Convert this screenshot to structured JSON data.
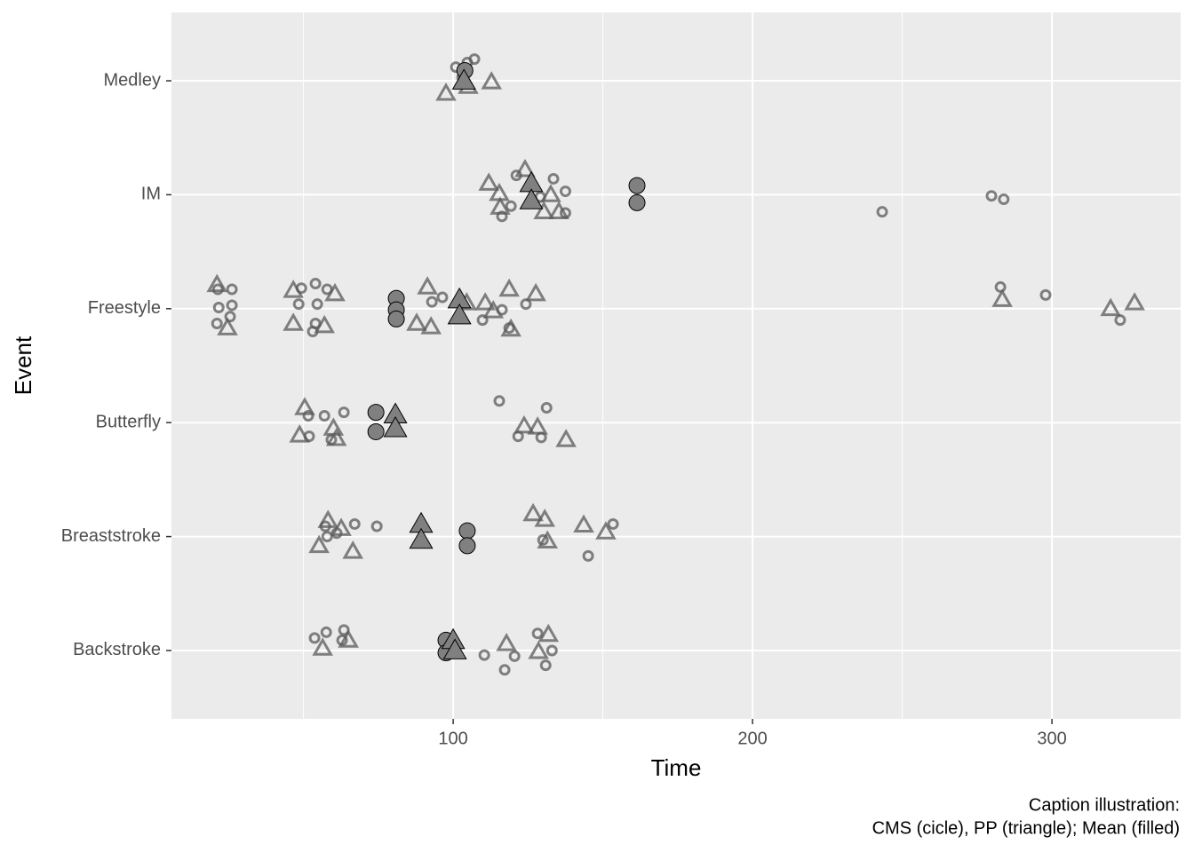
{
  "chart_data": {
    "type": "scatter",
    "xlabel": "Time",
    "ylabel": "Event",
    "caption": [
      "Caption illustration:",
      "CMS (cicle),  PP (triangle); Mean (filled)"
    ],
    "xlim": [
      5.9,
      343
    ],
    "xticks": [
      100,
      200,
      300
    ],
    "xminor": [
      50,
      150,
      250
    ],
    "ylim": [
      0.4,
      6.6
    ],
    "yticks": [
      {
        "value": 1,
        "label": "Backstroke"
      },
      {
        "value": 2,
        "label": "Breaststroke"
      },
      {
        "value": 3,
        "label": "Butterfly"
      },
      {
        "value": 4,
        "label": "Freestyle"
      },
      {
        "value": 5,
        "label": "IM"
      },
      {
        "value": 6,
        "label": "Medley"
      }
    ],
    "grid": true,
    "series": [
      {
        "shape": "circle",
        "filled": false,
        "color": "#595959",
        "x": [
          100.9,
          107.1,
          104.7,
          103,
          121.1,
          133.5,
          137.5,
          116.3,
          119.3,
          137.5,
          243.3,
          279.8,
          283.9,
          129.1,
          21.4,
          26.1,
          26.1,
          21.7,
          25.5,
          21.1,
          49.3,
          54,
          57.9,
          48.4,
          54.6,
          54,
          53.1,
          92.9,
          96.4,
          109.8,
          116.3,
          124.3,
          118.7,
          282.8,
          297.9,
          322.8,
          115.4,
          131.2,
          63.5,
          57,
          51.9,
          59.3,
          121.7,
          129.4,
          51.6,
          67.1,
          74.5,
          57.3,
          57.9,
          153.4,
          130,
          145.1,
          61.1,
          53.7,
          57.6,
          63.5,
          62.9,
          110.4,
          120.5,
          117.2,
          128.2,
          133,
          130.9
        ],
        "y": [
          6.12,
          6.19,
          6.16,
          6.03,
          5.17,
          5.14,
          5.03,
          4.81,
          4.9,
          4.84,
          4.85,
          4.99,
          4.96,
          4.98,
          4.17,
          4.17,
          4.03,
          4.01,
          3.93,
          3.87,
          4.18,
          4.22,
          4.17,
          4.04,
          4.04,
          3.87,
          3.8,
          4.06,
          4.1,
          3.9,
          3.99,
          4.04,
          3.83,
          4.19,
          4.12,
          3.9,
          3.19,
          3.13,
          3.09,
          3.06,
          2.88,
          2.85,
          2.88,
          2.87,
          3.06,
          2.11,
          2.09,
          2.09,
          2.0,
          2.11,
          1.97,
          1.83,
          2.03,
          1.11,
          1.16,
          1.18,
          1.09,
          0.96,
          0.95,
          0.83,
          1.15,
          1.0,
          0.87
        ]
      },
      {
        "shape": "triangle",
        "filled": false,
        "color": "#595959",
        "x": [
          97.6,
          112.8,
          105,
          111.9,
          124,
          115.4,
          132.6,
          115.7,
          130.3,
          135.3,
          21.1,
          60.5,
          46.6,
          46.6,
          57,
          24.6,
          91.4,
          87.8,
          92.6,
          104.5,
          118.7,
          127.6,
          283.4,
          319.6,
          327.6,
          110.7,
          119.3,
          113.4,
          50.4,
          48.7,
          60,
          123.7,
          128.2,
          137.7,
          61,
          126.7,
          130.6,
          143.6,
          151,
          55.2,
          66.5,
          58.2,
          62.6,
          131.5,
          56.4,
          65,
          117.8,
          131.8,
          128.5
        ],
        "y": [
          5.89,
          5.99,
          5.95,
          5.1,
          5.22,
          5.01,
          5.0,
          4.89,
          4.85,
          4.85,
          4.21,
          4.13,
          4.16,
          3.87,
          3.85,
          3.83,
          4.19,
          3.87,
          3.84,
          4.05,
          4.17,
          4.13,
          4.08,
          4.0,
          4.05,
          4.05,
          3.82,
          3.98,
          3.13,
          2.89,
          2.95,
          2.97,
          2.96,
          2.85,
          2.86,
          2.2,
          2.15,
          2.1,
          2.04,
          1.92,
          1.87,
          2.14,
          2.07,
          1.96,
          1.02,
          1.09,
          1.06,
          1.14,
          0.99
        ]
      },
      {
        "shape": "circle",
        "filled": true,
        "color": "#808080",
        "x": [
          103.9,
          161.4,
          161.4,
          81,
          81,
          81,
          74.2,
          74.2,
          104.7,
          104.7,
          97.6,
          97.6
        ],
        "y": [
          6.09,
          5.08,
          4.93,
          4.09,
          3.99,
          3.91,
          3.09,
          2.92,
          2.05,
          1.92,
          1.09,
          0.98
        ]
      },
      {
        "shape": "triangle",
        "filled": true,
        "color": "#808080",
        "x": [
          103.6,
          126.1,
          126.1,
          102.1,
          102.1,
          80.7,
          80.7,
          89.3,
          89.3,
          100,
          100.6
        ],
        "y": [
          6.0,
          5.1,
          4.95,
          4.08,
          3.94,
          3.07,
          2.95,
          2.11,
          1.97,
          1.09,
          1.0
        ]
      }
    ]
  }
}
